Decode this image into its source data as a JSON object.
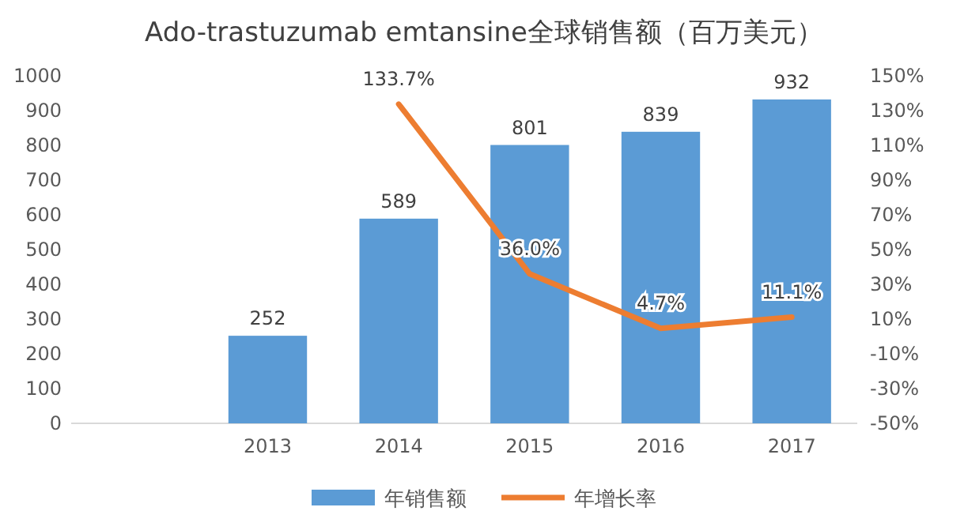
{
  "chart_data": {
    "type": "bar",
    "title": "Ado-trastuzumab emtansine全球销售额（百万美元）",
    "categories": [
      null,
      "2013",
      "2014",
      "2015",
      "2016",
      "2017"
    ],
    "series": [
      {
        "name": "年销售额",
        "color": "#5b9bd5",
        "values": [
          null,
          252,
          589,
          801,
          839,
          932
        ],
        "value_labels": [
          null,
          "252",
          "589",
          "801",
          "839",
          "932"
        ]
      },
      {
        "name": "年增长率",
        "type": "line",
        "axis": "y2",
        "color": "#ed7d31",
        "values": [
          null,
          null,
          133.7,
          36.0,
          4.7,
          11.1
        ],
        "value_labels": [
          null,
          null,
          "133.7%",
          "36.0%",
          "4.7%",
          "11.1%"
        ]
      }
    ],
    "ylim": [
      0,
      1000
    ],
    "yticks": [
      0,
      100,
      200,
      300,
      400,
      500,
      600,
      700,
      800,
      900,
      1000
    ],
    "y2lim": [
      -50,
      150
    ],
    "y2ticks": [
      {
        "value": -50,
        "label": "-50%"
      },
      {
        "value": -30,
        "label": "-30%"
      },
      {
        "value": -10,
        "label": "-10%"
      },
      {
        "value": 10,
        "label": "10%"
      },
      {
        "value": 30,
        "label": "30%"
      },
      {
        "value": 50,
        "label": "50%"
      },
      {
        "value": 70,
        "label": "70%"
      },
      {
        "value": 90,
        "label": "90%"
      },
      {
        "value": 110,
        "label": "110%"
      },
      {
        "value": 130,
        "label": "130%"
      },
      {
        "value": 150,
        "label": "150%"
      }
    ],
    "legend": "bottom",
    "marker": "none",
    "line_style": "solid"
  }
}
